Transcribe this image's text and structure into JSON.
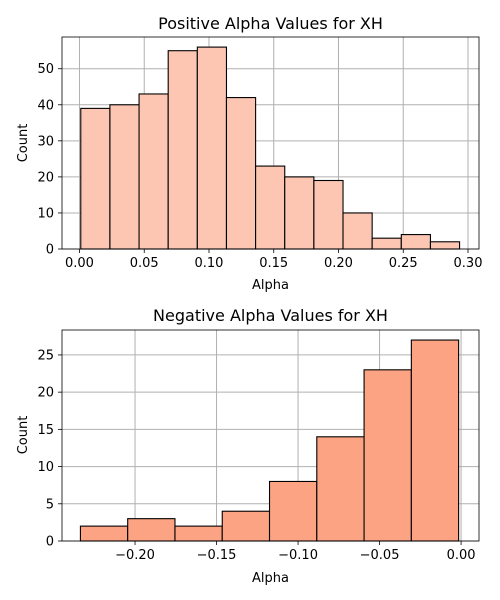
{
  "chart_data": [
    {
      "type": "bar",
      "title": "Positive Alpha Values for XH",
      "xlabel": "Alpha",
      "ylabel": "Count",
      "color": "#fcc6b3",
      "bins": [
        {
          "x0": 0.001,
          "x1": 0.0235,
          "count": 39
        },
        {
          "x0": 0.0235,
          "x1": 0.046,
          "count": 40
        },
        {
          "x0": 0.046,
          "x1": 0.0685,
          "count": 43
        },
        {
          "x0": 0.0685,
          "x1": 0.091,
          "count": 55
        },
        {
          "x0": 0.091,
          "x1": 0.1135,
          "count": 56
        },
        {
          "x0": 0.1135,
          "x1": 0.136,
          "count": 42
        },
        {
          "x0": 0.136,
          "x1": 0.1585,
          "count": 23
        },
        {
          "x0": 0.1585,
          "x1": 0.181,
          "count": 20
        },
        {
          "x0": 0.181,
          "x1": 0.2035,
          "count": 19
        },
        {
          "x0": 0.2035,
          "x1": 0.226,
          "count": 10
        },
        {
          "x0": 0.226,
          "x1": 0.2485,
          "count": 3
        },
        {
          "x0": 0.2485,
          "x1": 0.271,
          "count": 4
        },
        {
          "x0": 0.271,
          "x1": 0.2935,
          "count": 2
        }
      ],
      "xlim": [
        -0.0135,
        0.3085
      ],
      "ylim": [
        0,
        58.8
      ],
      "xticks": [
        {
          "value": 0.0,
          "label": "0.00"
        },
        {
          "value": 0.05,
          "label": "0.05"
        },
        {
          "value": 0.1,
          "label": "0.10"
        },
        {
          "value": 0.15,
          "label": "0.15"
        },
        {
          "value": 0.2,
          "label": "0.20"
        },
        {
          "value": 0.25,
          "label": "0.25"
        },
        {
          "value": 0.3,
          "label": "0.30"
        }
      ],
      "yticks": [
        {
          "value": 0,
          "label": "0"
        },
        {
          "value": 10,
          "label": "10"
        },
        {
          "value": 20,
          "label": "20"
        },
        {
          "value": 30,
          "label": "30"
        },
        {
          "value": 40,
          "label": "40"
        },
        {
          "value": 50,
          "label": "50"
        }
      ],
      "grid": true
    },
    {
      "type": "bar",
      "title": "Negative Alpha Values for XH",
      "xlabel": "Alpha",
      "ylabel": "Count",
      "color": "#fca383",
      "bins": [
        {
          "x0": -0.2335,
          "x1": -0.2045,
          "count": 2
        },
        {
          "x0": -0.2045,
          "x1": -0.1755,
          "count": 3
        },
        {
          "x0": -0.1755,
          "x1": -0.1465,
          "count": 2
        },
        {
          "x0": -0.1465,
          "x1": -0.1175,
          "count": 4
        },
        {
          "x0": -0.1175,
          "x1": -0.0885,
          "count": 8
        },
        {
          "x0": -0.0885,
          "x1": -0.0595,
          "count": 14
        },
        {
          "x0": -0.0595,
          "x1": -0.0305,
          "count": 23
        },
        {
          "x0": -0.0305,
          "x1": -0.0015,
          "count": 27
        }
      ],
      "xlim": [
        -0.2448,
        0.011
      ],
      "ylim": [
        0,
        28.35
      ],
      "xticks": [
        {
          "value": -0.2,
          "label": "−0.20"
        },
        {
          "value": -0.15,
          "label": "−0.15"
        },
        {
          "value": -0.1,
          "label": "−0.10"
        },
        {
          "value": -0.05,
          "label": "−0.05"
        },
        {
          "value": 0.0,
          "label": "0.00"
        }
      ],
      "yticks": [
        {
          "value": 0,
          "label": "0"
        },
        {
          "value": 5,
          "label": "5"
        },
        {
          "value": 10,
          "label": "10"
        },
        {
          "value": 15,
          "label": "15"
        },
        {
          "value": 20,
          "label": "20"
        },
        {
          "value": 25,
          "label": "25"
        }
      ],
      "grid": true
    }
  ]
}
